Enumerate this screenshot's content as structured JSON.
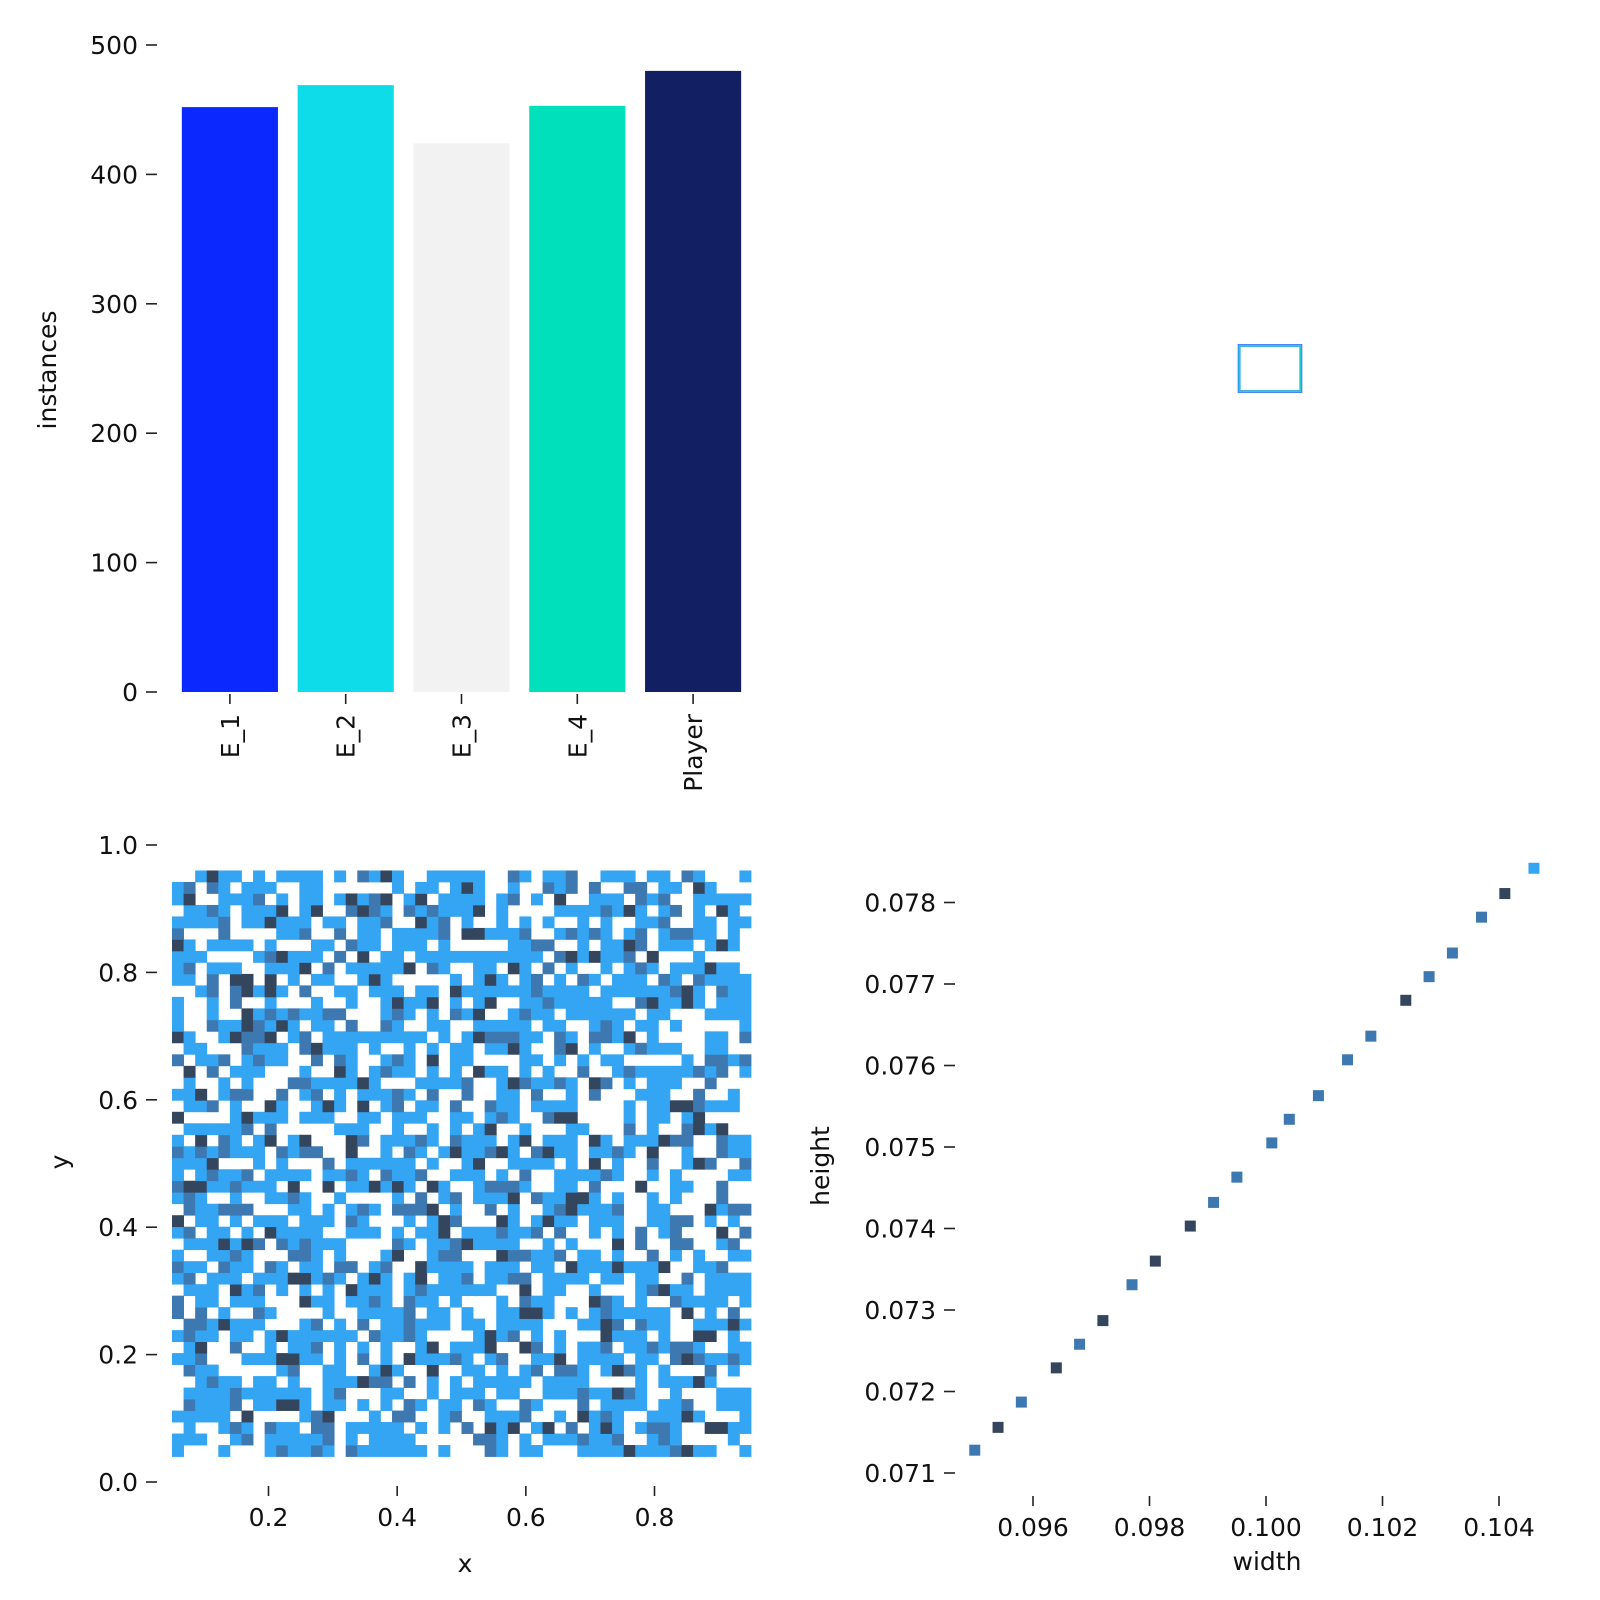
{
  "chart_data": [
    {
      "type": "bar",
      "categories": [
        "E_1",
        "E_2",
        "E_3",
        "E_4",
        "Player"
      ],
      "values": [
        452,
        469,
        424,
        453,
        480
      ],
      "colors": [
        "#0a28ff",
        "#0edce8",
        "#f2f2f2",
        "#00e0ba",
        "#131f63"
      ],
      "xlabel": "",
      "ylabel": "instances",
      "ylim": [
        0,
        500
      ],
      "yticks": [
        0,
        100,
        200,
        300,
        400,
        500
      ],
      "grid": false,
      "legend": "none"
    },
    {
      "type": "box-overlay",
      "description_visible": "overlay of centered label boxes (all boxes same size)",
      "box_center": [
        0.5,
        0.5
      ],
      "box_size": [
        0.1,
        0.075
      ],
      "edge_colors": [
        "#0a28ff",
        "#0edce8",
        "#00e0ba",
        "#33a7d6"
      ],
      "xlim": [
        0,
        1
      ],
      "ylim": [
        0,
        1
      ]
    },
    {
      "type": "heatmap",
      "xlabel": "x",
      "ylabel": "y",
      "xlim": [
        0.05,
        0.95
      ],
      "ylim": [
        0.0,
        1.0
      ],
      "xticks": [
        0.2,
        0.4,
        0.6,
        0.8
      ],
      "yticks": [
        0.0,
        0.2,
        0.4,
        0.6,
        0.8,
        1.0
      ],
      "data_extent": {
        "x": [
          0.05,
          0.95
        ],
        "y": [
          0.04,
          0.96
        ]
      },
      "bins": {
        "x": 50,
        "y": 51
      },
      "cell_colors": [
        "#34a5f3",
        "#3e78b0",
        "#34455e"
      ],
      "pattern_seed": 1337
    },
    {
      "type": "scatter",
      "xlabel": "width",
      "ylabel": "height",
      "xticks": [
        0.096,
        0.098,
        0.1,
        0.102,
        0.104
      ],
      "xtick_labels": [
        "0.096",
        "0.098",
        "0.100",
        "0.102",
        "0.104"
      ],
      "yticks": [
        0.071,
        0.072,
        0.073,
        0.074,
        0.075,
        0.076,
        0.077,
        0.078
      ],
      "ytick_labels": [
        "0.071",
        "0.072",
        "0.073",
        "0.074",
        "0.075",
        "0.076",
        "0.077",
        "0.078"
      ],
      "points": [
        {
          "x": 0.095,
          "y": 0.07128,
          "c": "#3e78b0"
        },
        {
          "x": 0.0954,
          "y": 0.07156,
          "c": "#34455e"
        },
        {
          "x": 0.0958,
          "y": 0.07187,
          "c": "#3e78b0"
        },
        {
          "x": 0.0964,
          "y": 0.07229,
          "c": "#34455e"
        },
        {
          "x": 0.0968,
          "y": 0.07258,
          "c": "#3e78b0"
        },
        {
          "x": 0.0972,
          "y": 0.07287,
          "c": "#34455e"
        },
        {
          "x": 0.0977,
          "y": 0.07331,
          "c": "#3e78b0"
        },
        {
          "x": 0.0981,
          "y": 0.0736,
          "c": "#34455e"
        },
        {
          "x": 0.0987,
          "y": 0.07403,
          "c": "#34455e"
        },
        {
          "x": 0.0991,
          "y": 0.07432,
          "c": "#3e78b0"
        },
        {
          "x": 0.0995,
          "y": 0.07463,
          "c": "#3e78b0"
        },
        {
          "x": 0.1001,
          "y": 0.07505,
          "c": "#3e78b0"
        },
        {
          "x": 0.1004,
          "y": 0.07534,
          "c": "#3e78b0"
        },
        {
          "x": 0.1009,
          "y": 0.07563,
          "c": "#3e78b0"
        },
        {
          "x": 0.1014,
          "y": 0.07607,
          "c": "#3e78b0"
        },
        {
          "x": 0.1018,
          "y": 0.07636,
          "c": "#3e78b0"
        },
        {
          "x": 0.1024,
          "y": 0.0768,
          "c": "#34455e"
        },
        {
          "x": 0.1028,
          "y": 0.07709,
          "c": "#3e78b0"
        },
        {
          "x": 0.1032,
          "y": 0.07738,
          "c": "#3e78b0"
        },
        {
          "x": 0.1037,
          "y": 0.07782,
          "c": "#3e78b0"
        },
        {
          "x": 0.1041,
          "y": 0.07811,
          "c": "#34455e"
        },
        {
          "x": 0.1046,
          "y": 0.07842,
          "c": "#34a5f3"
        }
      ]
    }
  ]
}
